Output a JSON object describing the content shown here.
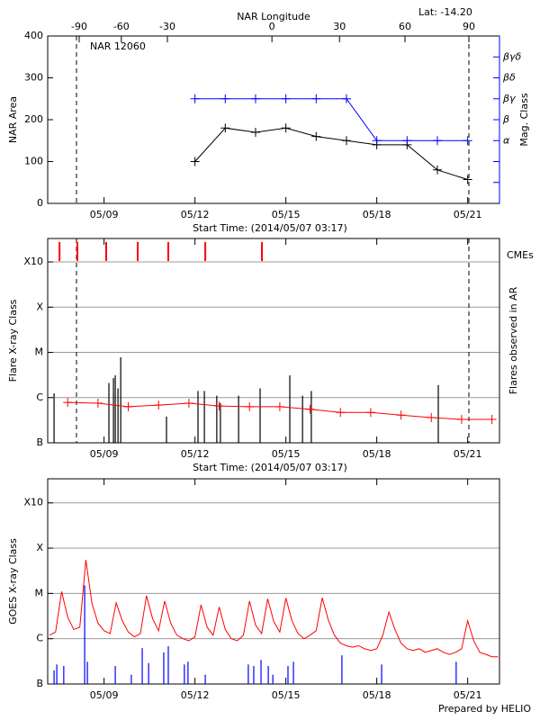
{
  "chart_data": [
    {
      "type": "line",
      "title": "NAR 12060",
      "annotation": "Lat: -14.20",
      "x2label": "NAR Longitude",
      "xlabel": "Start Time: (2014/05/07 03:17)",
      "ylabel": "NAR Area",
      "y2label": "Mag. Class",
      "y2color": "#0000ff",
      "xlim": [
        7.14,
        22.05
      ],
      "xticks": [
        {
          "value": 9,
          "label": "05/09"
        },
        {
          "value": 12,
          "label": "05/12"
        },
        {
          "value": 15,
          "label": "05/15"
        },
        {
          "value": 18,
          "label": "05/18"
        },
        {
          "value": 21,
          "label": "05/21"
        }
      ],
      "x2ticks": [
        {
          "value": 8.18,
          "label": "-90"
        },
        {
          "value": 9.57,
          "label": "-60"
        },
        {
          "value": 11.09,
          "label": "-30"
        },
        {
          "value": 14.54,
          "label": "0"
        },
        {
          "value": 16.77,
          "label": "30"
        },
        {
          "value": 18.93,
          "label": "60"
        },
        {
          "value": 21.04,
          "label": "90"
        }
      ],
      "ylim": [
        0,
        400
      ],
      "yticks": [
        0,
        100,
        200,
        300,
        400
      ],
      "y2lim": [
        0,
        8
      ],
      "y2ticks": [
        {
          "value": 1,
          "label": null
        },
        {
          "value": 2,
          "label": null
        },
        {
          "value": 3,
          "label": "α"
        },
        {
          "value": 4,
          "label": "β"
        },
        {
          "value": 5,
          "label": "βγ"
        },
        {
          "value": 6,
          "label": "βδ"
        },
        {
          "value": 7,
          "label": "βγδ"
        }
      ],
      "grid": false,
      "vlines": [
        8.09,
        21.04
      ],
      "series": [
        {
          "kind": "line",
          "marker": "plus",
          "color": "#000000",
          "x": [
            12,
            13,
            14,
            15,
            16,
            17,
            18,
            19,
            20,
            21
          ],
          "values": [
            100,
            180,
            170,
            180,
            160,
            150,
            140,
            140,
            80,
            57
          ]
        },
        {
          "kind": "line",
          "marker": "plus",
          "color": "#0000ff",
          "axis": "y2",
          "x": [
            12,
            13,
            14,
            15,
            16,
            17,
            18,
            19,
            20,
            21
          ],
          "values": [
            5,
            5,
            5,
            5,
            5,
            5,
            3,
            3,
            3,
            3
          ]
        }
      ]
    },
    {
      "type": "bar",
      "xlabel": "Start Time: (2014/05/07 03:17)",
      "ylabel": "Flare X-ray Class",
      "y2label": "Flares observed in AR",
      "xlim": [
        7.14,
        22.05
      ],
      "xticks": [
        {
          "value": 9,
          "label": "05/09"
        },
        {
          "value": 12,
          "label": "05/12"
        },
        {
          "value": 15,
          "label": "05/15"
        },
        {
          "value": 18,
          "label": "05/18"
        },
        {
          "value": 21,
          "label": "05/21"
        }
      ],
      "ylim": [
        1e-07,
        0.0033
      ],
      "log_y": true,
      "yticks": [
        {
          "value": 1e-07,
          "label": "B"
        },
        {
          "value": 1e-06,
          "label": "C"
        },
        {
          "value": 1e-05,
          "label": "M"
        },
        {
          "value": 0.0001,
          "label": "X"
        },
        {
          "value": 0.001,
          "label": "X10"
        }
      ],
      "grid": true,
      "vlines": [
        8.09,
        21.04
      ],
      "series": [
        {
          "kind": "stem",
          "color": "#000000",
          "x": [
            7.35,
            9.16,
            9.31,
            9.37,
            9.46,
            9.55,
            11.06,
            12.1,
            12.31,
            12.72,
            12.84,
            13.44,
            14.15,
            15.13,
            15.55,
            15.84,
            20.03
          ],
          "values": [
            1.24e-06,
            2.1e-06,
            2.7e-06,
            3.1e-06,
            1.6e-06,
            7.8e-06,
            3.8e-07,
            1.4e-06,
            1.4e-06,
            1.1e-06,
            7.5e-07,
            1.1e-06,
            1.6e-06,
            3.1e-06,
            1.1e-06,
            1.4e-06,
            1.9e-06
          ]
        },
        {
          "kind": "line",
          "marker": "plus",
          "color": "#ff0000",
          "x": [
            7.8,
            8.8,
            9.8,
            10.8,
            11.8,
            12.8,
            13.8,
            14.8,
            15.8,
            16.8,
            17.8,
            18.8,
            19.8,
            20.8,
            21.8
          ],
          "values": [
            7.8e-07,
            7.5e-07,
            6.3e-07,
            6.8e-07,
            7.5e-07,
            6.5e-07,
            6.3e-07,
            6.3e-07,
            5.5e-07,
            4.7e-07,
            4.7e-07,
            4.1e-07,
            3.6e-07,
            3.3e-07,
            3.3e-07
          ]
        },
        {
          "kind": "event",
          "name": "CMEs",
          "color": "#ff0000",
          "x": [
            7.53,
            8.12,
            9.07,
            10.11,
            11.12,
            12.34,
            14.21
          ]
        }
      ]
    },
    {
      "type": "line",
      "ylabel": "GOES X-ray Class",
      "xlim": [
        7.14,
        22.05
      ],
      "xticks": [
        {
          "value": 9,
          "label": "05/09"
        },
        {
          "value": 12,
          "label": "05/12"
        },
        {
          "value": 15,
          "label": "05/15"
        },
        {
          "value": 18,
          "label": "05/18"
        },
        {
          "value": 21,
          "label": "05/21"
        }
      ],
      "ylim": [
        1e-07,
        0.0034
      ],
      "log_y": true,
      "yticks": [
        {
          "value": 1e-07,
          "label": "B"
        },
        {
          "value": 1e-06,
          "label": "C"
        },
        {
          "value": 1e-05,
          "label": "M"
        },
        {
          "value": 0.0001,
          "label": "X"
        },
        {
          "value": 0.001,
          "label": "X10"
        }
      ],
      "grid": true,
      "series": [
        {
          "kind": "line",
          "color": "#ff0000",
          "x": [
            7.2,
            7.4,
            7.6,
            7.8,
            8.0,
            8.2,
            8.4,
            8.6,
            8.8,
            9.0,
            9.2,
            9.4,
            9.6,
            9.8,
            10.0,
            10.2,
            10.4,
            10.6,
            10.8,
            11.0,
            11.2,
            11.4,
            11.6,
            11.8,
            12.0,
            12.2,
            12.4,
            12.6,
            12.8,
            13.0,
            13.2,
            13.4,
            13.6,
            13.8,
            14.0,
            14.2,
            14.4,
            14.6,
            14.8,
            15.0,
            15.2,
            15.4,
            15.6,
            15.8,
            16.0,
            16.2,
            16.4,
            16.6,
            16.8,
            17.0,
            17.2,
            17.4,
            17.6,
            17.8,
            18.0,
            18.2,
            18.4,
            18.6,
            18.8,
            19.0,
            19.2,
            19.4,
            19.6,
            19.8,
            20.0,
            20.2,
            20.4,
            20.6,
            20.8,
            21.0,
            21.2,
            21.4,
            21.6,
            21.8,
            22.0
          ],
          "values": [
            1.2e-06,
            1.4e-06,
            1.1e-05,
            3e-06,
            1.6e-06,
            1.8e-06,
            5.5e-05,
            6e-06,
            2.2e-06,
            1.5e-06,
            1.3e-06,
            6.2e-06,
            2.5e-06,
            1.4e-06,
            1.1e-06,
            1.3e-06,
            8.9e-06,
            2.8e-06,
            1.5e-06,
            6.8e-06,
            2.2e-06,
            1.2e-06,
            1e-06,
            9e-07,
            1.1e-06,
            5.6e-06,
            1.8e-06,
            1.2e-06,
            5e-06,
            1.6e-06,
            1e-06,
            9e-07,
            1.2e-06,
            6.8e-06,
            2e-06,
            1.3e-06,
            7.6e-06,
            2.4e-06,
            1.4e-06,
            7.9e-06,
            2.5e-06,
            1.3e-06,
            1e-06,
            1.2e-06,
            1.5e-06,
            8e-06,
            2.6e-06,
            1.2e-06,
            8e-07,
            7e-07,
            6.5e-07,
            7e-07,
            6e-07,
            5.5e-07,
            6e-07,
            1.2e-06,
            3.9e-06,
            1.6e-06,
            8e-07,
            6e-07,
            5.5e-07,
            6e-07,
            5e-07,
            5.5e-07,
            6e-07,
            5e-07,
            4.5e-07,
            5e-07,
            6e-07,
            2.5e-06,
            9e-07,
            5e-07,
            4.5e-07,
            4e-07,
            4e-07
          ]
        },
        {
          "kind": "stem",
          "color": "#0000ff",
          "x": [
            7.35,
            7.44,
            7.67,
            8.36,
            8.45,
            9.37,
            9.9,
            10.26,
            10.47,
            10.97,
            11.12,
            11.65,
            11.77,
            12.34,
            13.76,
            13.94,
            14.18,
            14.42,
            14.57,
            15.07,
            15.25,
            16.85,
            18.16,
            20.62
          ],
          "values": [
            2e-07,
            2.7e-07,
            2.5e-07,
            1.5e-05,
            3.1e-07,
            2.5e-07,
            1.6e-07,
            6.2e-07,
            2.9e-07,
            5e-07,
            6.8e-07,
            2.7e-07,
            3.1e-07,
            1.6e-07,
            2.7e-07,
            2.5e-07,
            3.4e-07,
            2.5e-07,
            1.6e-07,
            2.5e-07,
            3.1e-07,
            4.3e-07,
            2.7e-07,
            3.1e-07
          ]
        }
      ]
    }
  ],
  "footer": "Prepared by HELIO"
}
